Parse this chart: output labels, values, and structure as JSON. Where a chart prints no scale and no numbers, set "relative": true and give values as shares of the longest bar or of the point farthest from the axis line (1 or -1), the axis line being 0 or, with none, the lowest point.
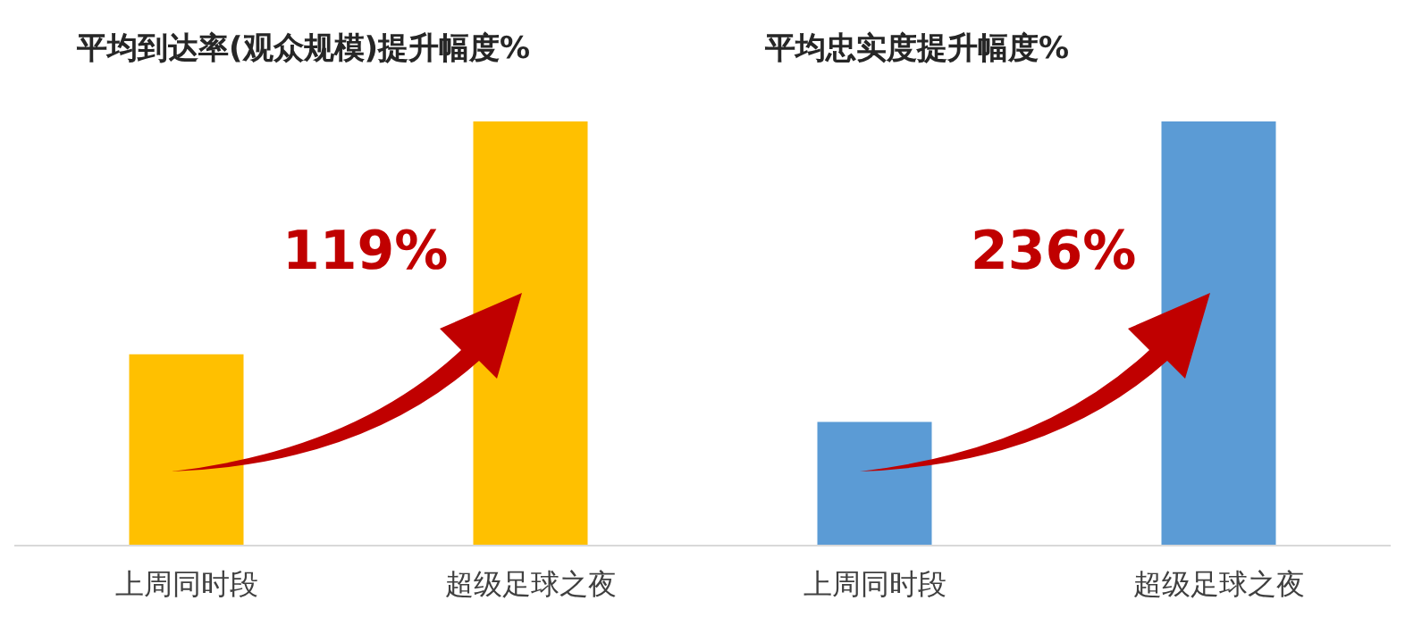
{
  "chart_data": [
    {
      "type": "bar",
      "title": "平均到达率(观众规模)提升幅度%",
      "categories": [
        "上周同时段",
        "超级足球之夜"
      ],
      "values": [
        0.45,
        1
      ],
      "color": "#ffc000",
      "relative": true,
      "annotations": [
        "119%"
      ]
    },
    {
      "type": "bar",
      "title": "平均忠实度提升幅度%",
      "categories": [
        "上周同时段",
        "超级足球之夜"
      ],
      "values": [
        0.29,
        1
      ],
      "color": "#5b9bd5",
      "relative": true,
      "annotations": [
        "236%"
      ]
    }
  ]
}
